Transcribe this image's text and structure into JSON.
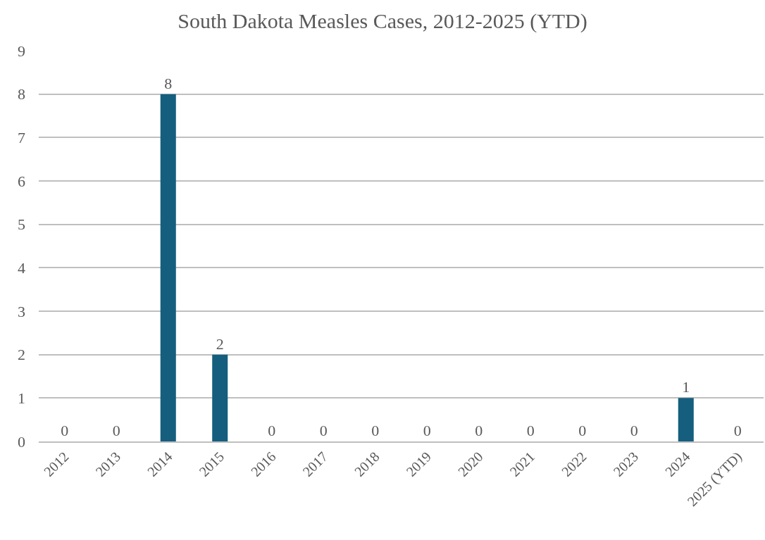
{
  "chart_data": {
    "type": "bar",
    "title": "South Dakota Measles Cases, 2012-2025 (YTD)",
    "categories": [
      "2012",
      "2013",
      "2014",
      "2015",
      "2016",
      "2017",
      "2018",
      "2019",
      "2020",
      "2021",
      "2022",
      "2023",
      "2024",
      "2025 (YTD)"
    ],
    "values": [
      0,
      0,
      8,
      2,
      0,
      0,
      0,
      0,
      0,
      0,
      0,
      0,
      1,
      0
    ],
    "color": "#155e7e",
    "ylim": [
      0,
      9
    ],
    "yticks": [
      0,
      1,
      2,
      3,
      4,
      5,
      6,
      7,
      8,
      9
    ],
    "grid": "y",
    "data_labels": true,
    "legend": false
  }
}
